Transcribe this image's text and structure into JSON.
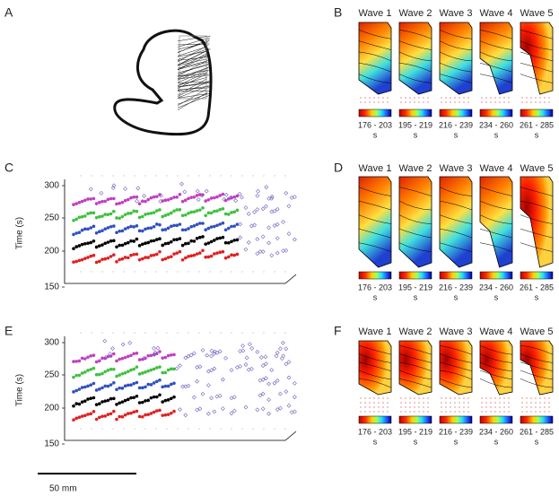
{
  "panel_labels": [
    "A",
    "B",
    "C",
    "D",
    "E",
    "F"
  ],
  "wave_panels": [
    {
      "waves": [
        {
          "title": "Wave 1",
          "range": "176 - 203",
          "unit": "s"
        },
        {
          "title": "Wave 2",
          "range": "195 - 219",
          "unit": "s"
        },
        {
          "title": "Wave 3",
          "range": "216 - 239",
          "unit": "s"
        },
        {
          "title": "Wave 4",
          "range": "234 - 260",
          "unit": "s"
        },
        {
          "title": "Wave 5",
          "range": "261 - 285",
          "unit": "s"
        }
      ]
    },
    {
      "waves": [
        {
          "title": "Wave 1",
          "range": "176 - 203",
          "unit": "s"
        },
        {
          "title": "Wave 2",
          "range": "195 - 219",
          "unit": "s"
        },
        {
          "title": "Wave 3",
          "range": "216 - 239",
          "unit": "s"
        },
        {
          "title": "Wave 4",
          "range": "234 - 260",
          "unit": "s"
        },
        {
          "title": "Wave 5",
          "range": "261 - 285",
          "unit": "s"
        }
      ]
    },
    {
      "waves": [
        {
          "title": "Wave 1",
          "range": "176 - 203",
          "unit": "s"
        },
        {
          "title": "Wave 2",
          "range": "195 - 219",
          "unit": "s"
        },
        {
          "title": "Wave 3",
          "range": "216 - 239",
          "unit": "s"
        },
        {
          "title": "Wave 4",
          "range": "234 - 260",
          "unit": "s"
        },
        {
          "title": "Wave 5",
          "range": "261 - 285",
          "unit": "s"
        }
      ]
    }
  ],
  "scatter_panels": [
    {
      "ylabel": "Time (s)",
      "yticks": [
        "300",
        "250",
        "200",
        "150"
      ]
    },
    {
      "ylabel": "Time (s)",
      "yticks": [
        "300",
        "250",
        "200",
        "150"
      ]
    }
  ],
  "scale_bar": "50 mm"
}
